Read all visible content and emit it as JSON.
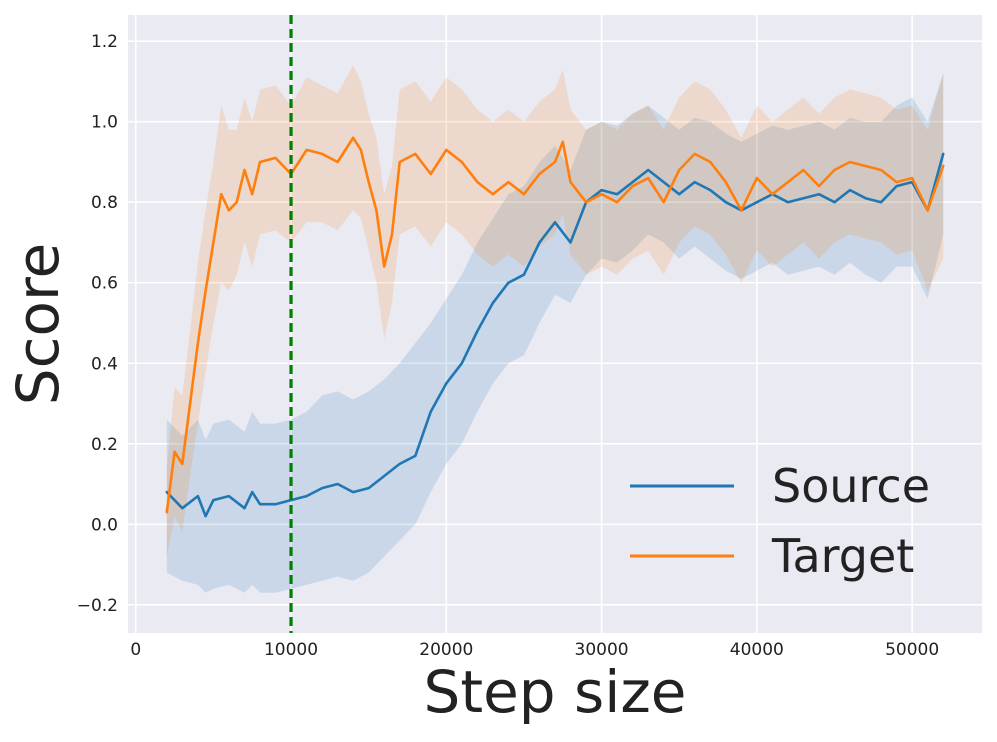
{
  "chart_data": {
    "type": "line",
    "title": "",
    "xlabel": "Step size",
    "ylabel": "Score",
    "xlim": [
      -500,
      54500
    ],
    "ylim": [
      -0.27,
      1.265
    ],
    "xticks": [
      0,
      10000,
      20000,
      30000,
      40000,
      50000
    ],
    "xtick_labels": [
      "0",
      "10000",
      "20000",
      "30000",
      "40000",
      "50000"
    ],
    "yticks": [
      -0.2,
      0.0,
      0.2,
      0.4,
      0.6,
      0.8,
      1.0,
      1.2
    ],
    "ytick_labels": [
      "−0.2",
      "0.0",
      "0.2",
      "0.4",
      "0.6",
      "0.8",
      "1.0",
      "1.2"
    ],
    "grid": true,
    "legend_position": "lower-right",
    "colors": {
      "background": "#eaeaf2",
      "grid": "#ffffff",
      "source": "#1f77b4",
      "target": "#ff7f0e",
      "vline": "#007f00"
    },
    "vline": {
      "x": 10000,
      "style": "dashed",
      "color": "#007f00"
    },
    "series": [
      {
        "name": "Source",
        "color": "#1f77b4",
        "x": [
          2000,
          3000,
          4000,
          4500,
          5000,
          6000,
          7000,
          7500,
          8000,
          9000,
          10000,
          11000,
          12000,
          13000,
          14000,
          15000,
          16000,
          17000,
          18000,
          19000,
          20000,
          21000,
          22000,
          23000,
          24000,
          25000,
          26000,
          27000,
          28000,
          29000,
          30000,
          31000,
          32000,
          33000,
          34000,
          35000,
          36000,
          37000,
          38000,
          39000,
          40000,
          41000,
          42000,
          43000,
          44000,
          45000,
          46000,
          47000,
          48000,
          49000,
          50000,
          51000,
          52000
        ],
        "y": [
          0.08,
          0.04,
          0.07,
          0.02,
          0.06,
          0.07,
          0.04,
          0.08,
          0.05,
          0.05,
          0.06,
          0.07,
          0.09,
          0.1,
          0.08,
          0.09,
          0.12,
          0.15,
          0.17,
          0.28,
          0.35,
          0.4,
          0.48,
          0.55,
          0.6,
          0.62,
          0.7,
          0.75,
          0.7,
          0.8,
          0.83,
          0.82,
          0.85,
          0.88,
          0.85,
          0.82,
          0.85,
          0.83,
          0.8,
          0.78,
          0.8,
          0.82,
          0.8,
          0.81,
          0.82,
          0.8,
          0.83,
          0.81,
          0.8,
          0.84,
          0.85,
          0.78,
          0.92
        ],
        "lower": [
          -0.12,
          -0.14,
          -0.15,
          -0.17,
          -0.16,
          -0.15,
          -0.17,
          -0.15,
          -0.17,
          -0.17,
          -0.16,
          -0.15,
          -0.14,
          -0.13,
          -0.14,
          -0.12,
          -0.08,
          -0.04,
          0.0,
          0.08,
          0.15,
          0.2,
          0.28,
          0.35,
          0.4,
          0.42,
          0.5,
          0.57,
          0.55,
          0.62,
          0.66,
          0.65,
          0.68,
          0.72,
          0.7,
          0.66,
          0.69,
          0.66,
          0.63,
          0.61,
          0.63,
          0.65,
          0.62,
          0.63,
          0.64,
          0.62,
          0.65,
          0.62,
          0.6,
          0.64,
          0.64,
          0.56,
          0.72
        ],
        "upper": [
          0.26,
          0.22,
          0.26,
          0.21,
          0.25,
          0.26,
          0.23,
          0.28,
          0.25,
          0.25,
          0.26,
          0.28,
          0.32,
          0.33,
          0.31,
          0.33,
          0.36,
          0.4,
          0.45,
          0.5,
          0.56,
          0.62,
          0.7,
          0.76,
          0.82,
          0.84,
          0.9,
          0.94,
          0.88,
          0.98,
          1.0,
          0.99,
          1.02,
          1.04,
          1.01,
          0.98,
          1.01,
          1.0,
          0.97,
          0.95,
          0.97,
          0.99,
          0.98,
          0.99,
          1.0,
          0.98,
          1.01,
          1.0,
          1.0,
          1.04,
          1.06,
          1.0,
          1.12
        ]
      },
      {
        "name": "Target",
        "color": "#ff7f0e",
        "x": [
          2000,
          2500,
          3000,
          3500,
          4000,
          4500,
          5000,
          5500,
          6000,
          6500,
          7000,
          7500,
          8000,
          9000,
          10000,
          11000,
          12000,
          13000,
          14000,
          14500,
          15000,
          15500,
          16000,
          16500,
          17000,
          18000,
          19000,
          20000,
          21000,
          22000,
          23000,
          24000,
          25000,
          26000,
          27000,
          27500,
          28000,
          29000,
          30000,
          31000,
          32000,
          33000,
          34000,
          35000,
          36000,
          37000,
          38000,
          39000,
          40000,
          41000,
          42000,
          43000,
          44000,
          45000,
          46000,
          47000,
          48000,
          49000,
          50000,
          51000,
          52000
        ],
        "y": [
          0.03,
          0.18,
          0.15,
          0.3,
          0.45,
          0.58,
          0.7,
          0.82,
          0.78,
          0.8,
          0.88,
          0.82,
          0.9,
          0.91,
          0.87,
          0.93,
          0.92,
          0.9,
          0.96,
          0.93,
          0.85,
          0.78,
          0.64,
          0.72,
          0.9,
          0.92,
          0.87,
          0.93,
          0.9,
          0.85,
          0.82,
          0.85,
          0.82,
          0.87,
          0.9,
          0.95,
          0.85,
          0.8,
          0.82,
          0.8,
          0.84,
          0.86,
          0.8,
          0.88,
          0.92,
          0.9,
          0.85,
          0.78,
          0.86,
          0.82,
          0.85,
          0.88,
          0.84,
          0.88,
          0.9,
          0.89,
          0.88,
          0.85,
          0.86,
          0.78,
          0.89
        ],
        "lower": [
          -0.08,
          0.02,
          -0.02,
          0.12,
          0.25,
          0.38,
          0.5,
          0.6,
          0.58,
          0.62,
          0.7,
          0.64,
          0.72,
          0.73,
          0.7,
          0.75,
          0.75,
          0.73,
          0.78,
          0.76,
          0.68,
          0.6,
          0.46,
          0.55,
          0.72,
          0.74,
          0.69,
          0.75,
          0.72,
          0.67,
          0.64,
          0.67,
          0.64,
          0.69,
          0.72,
          0.77,
          0.67,
          0.62,
          0.64,
          0.62,
          0.66,
          0.68,
          0.62,
          0.7,
          0.74,
          0.72,
          0.67,
          0.6,
          0.68,
          0.64,
          0.67,
          0.7,
          0.66,
          0.7,
          0.72,
          0.71,
          0.7,
          0.67,
          0.68,
          0.58,
          0.66
        ],
        "upper": [
          0.14,
          0.34,
          0.32,
          0.48,
          0.65,
          0.78,
          0.9,
          1.04,
          0.98,
          0.98,
          1.06,
          1.0,
          1.08,
          1.09,
          1.04,
          1.11,
          1.09,
          1.07,
          1.14,
          1.1,
          1.02,
          0.96,
          0.82,
          0.89,
          1.08,
          1.1,
          1.05,
          1.11,
          1.08,
          1.03,
          1.0,
          1.03,
          1.0,
          1.05,
          1.08,
          1.13,
          1.03,
          0.98,
          1.0,
          0.98,
          1.02,
          1.04,
          0.98,
          1.06,
          1.1,
          1.08,
          1.03,
          0.96,
          1.04,
          1.0,
          1.03,
          1.06,
          1.02,
          1.06,
          1.08,
          1.07,
          1.06,
          1.03,
          1.04,
          0.98,
          1.12
        ]
      }
    ]
  }
}
